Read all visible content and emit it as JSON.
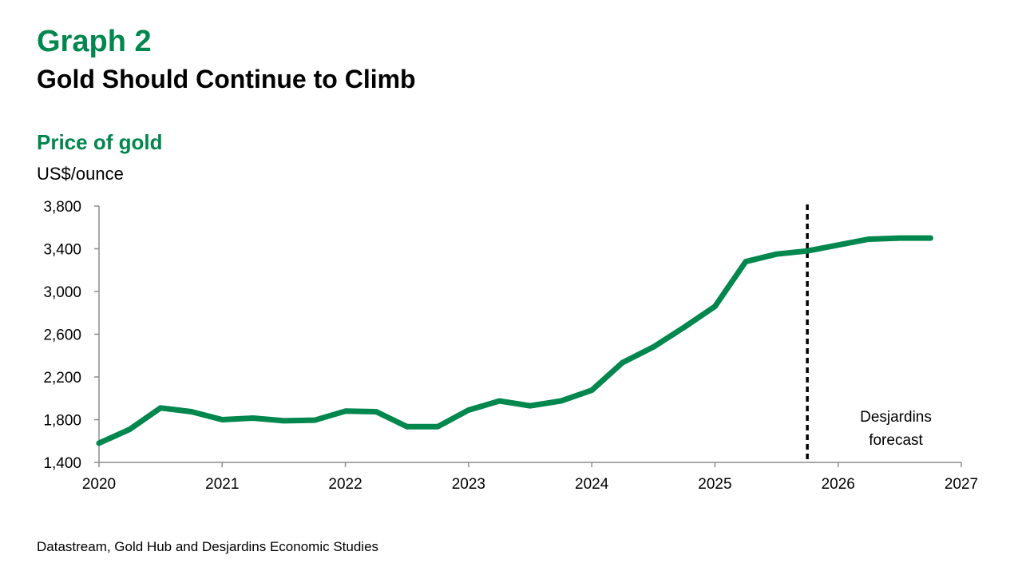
{
  "header": {
    "graph_number": "Graph 2",
    "title": "Gold Should Continue to Climb"
  },
  "footer": {
    "source": "Datastream, Gold Hub and Desjardins Economic Studies"
  },
  "colors": {
    "accent": "#00874e",
    "line": "#00874e",
    "text": "#000000"
  },
  "chart_data": {
    "type": "line",
    "title": "Price of gold",
    "ylabel": "US$/ounce",
    "xlabel": "",
    "ylim": [
      1400,
      3800
    ],
    "xlim": [
      2020,
      2027
    ],
    "yticks": [
      1400,
      1800,
      2200,
      2600,
      3000,
      3400,
      3800
    ],
    "ytick_labels": [
      "1,400",
      "1,800",
      "2,200",
      "2,600",
      "3,000",
      "3,400",
      "3,800"
    ],
    "xticks": [
      2020,
      2021,
      2022,
      2023,
      2024,
      2025,
      2026,
      2027
    ],
    "xtick_labels": [
      "2020",
      "2021",
      "2022",
      "2023",
      "2024",
      "2025",
      "2026",
      "2027"
    ],
    "grid": false,
    "legend": "none",
    "series": [
      {
        "x": [
          2020.0,
          2020.25,
          2020.5,
          2020.75,
          2021.0,
          2021.25,
          2021.5,
          2021.75,
          2022.0,
          2022.25,
          2022.5,
          2022.75,
          2023.0,
          2023.25,
          2023.5,
          2023.75,
          2024.0,
          2024.25,
          2024.5,
          2024.75,
          2025.0,
          2025.25,
          2025.5,
          2025.75,
          2026.0,
          2026.25,
          2026.5,
          2026.75
        ],
        "values": [
          1580,
          1710,
          1910,
          1875,
          1800,
          1815,
          1790,
          1795,
          1880,
          1875,
          1735,
          1735,
          1890,
          1975,
          1930,
          1975,
          2075,
          2335,
          2480,
          2665,
          2860,
          3280,
          3350,
          3380,
          3435,
          3490,
          3500,
          3500
        ]
      }
    ],
    "forecast_start": 2025.75,
    "annotations": [
      "Desjardins",
      "forecast"
    ]
  }
}
